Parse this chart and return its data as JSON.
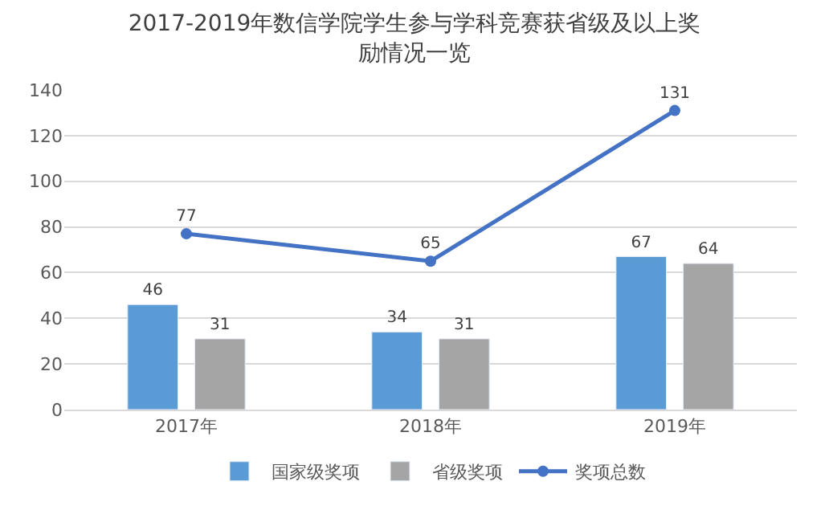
{
  "chart_data": {
    "type": "bar",
    "title": "2017-2019年数信学院学生参与学科竞赛获省级及以上奖励情况一览",
    "categories": [
      "2017年",
      "2018年",
      "2019年"
    ],
    "series": [
      {
        "name": "国家级奖项",
        "color": "#5b9bd5",
        "values": [
          46,
          34,
          67
        ]
      },
      {
        "name": "省级奖项",
        "color": "#a5a5a5",
        "values": [
          31,
          31,
          64
        ]
      },
      {
        "name": "奖项总数",
        "color": "#4472c4",
        "values": [
          77,
          65,
          131
        ],
        "type": "line",
        "marker": "circle"
      }
    ],
    "ylim": [
      0,
      140
    ],
    "yticks": [
      0,
      20,
      40,
      60,
      80,
      100,
      120,
      140
    ],
    "grid": "y",
    "legend": "bottom",
    "data_labels": true
  }
}
